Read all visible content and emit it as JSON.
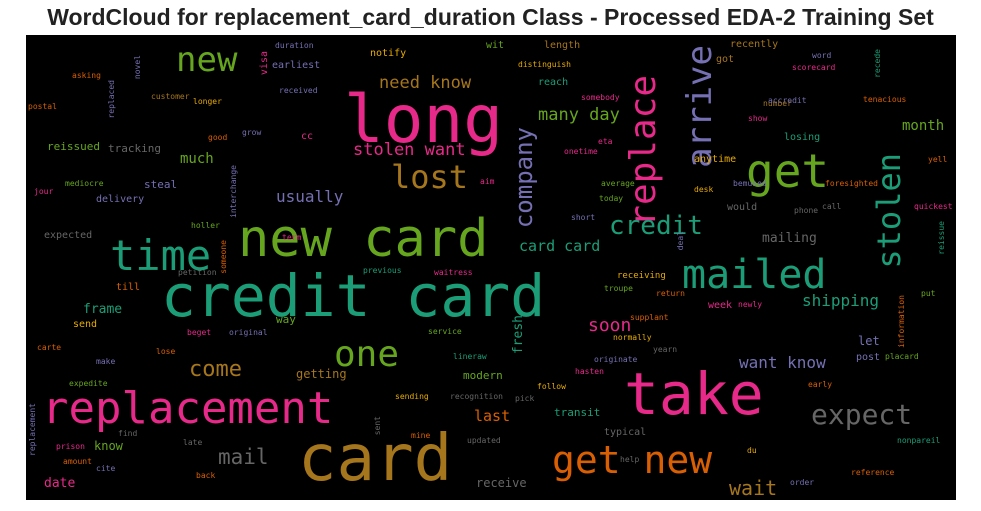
{
  "chart_data": {
    "type": "wordcloud",
    "title": "WordCloud for replacement_card_duration Class - Processed EDA-2 Training Set",
    "background": "#000000",
    "palette": [
      "#1b9e77",
      "#d95f02",
      "#7570b3",
      "#e7298a",
      "#66a61e",
      "#e6ab02",
      "#a6761d",
      "#666666"
    ],
    "words": [
      {
        "text": "long",
        "rank": 1,
        "color": "#e7298a"
      },
      {
        "text": "credit card",
        "rank": 1,
        "color": "#1b9e77"
      },
      {
        "text": "card",
        "rank": 1,
        "color": "#a6761d"
      },
      {
        "text": "take",
        "rank": 1,
        "color": "#e7298a"
      },
      {
        "text": "new card",
        "rank": 2,
        "color": "#66a61e"
      },
      {
        "text": "replacement",
        "rank": 2,
        "color": "#e7298a"
      },
      {
        "text": "time",
        "rank": 3,
        "color": "#1b9e77"
      },
      {
        "text": "mailed",
        "rank": 3,
        "color": "#1b9e77"
      },
      {
        "text": "get",
        "rank": 3,
        "color": "#66a61e"
      },
      {
        "text": "get new",
        "rank": 3,
        "color": "#d95f02"
      },
      {
        "text": "replace",
        "rank": 3,
        "color": "#e7298a"
      },
      {
        "text": "arrive",
        "rank": 3,
        "color": "#7570b3"
      },
      {
        "text": "new",
        "rank": 4,
        "color": "#66a61e"
      },
      {
        "text": "one",
        "rank": 4,
        "color": "#66a61e"
      },
      {
        "text": "lost",
        "rank": 4,
        "color": "#a6761d"
      },
      {
        "text": "stolen",
        "rank": 4,
        "color": "#1b9e77"
      },
      {
        "text": "expect",
        "rank": 4,
        "color": "#666666"
      },
      {
        "text": "credit",
        "rank": 5,
        "color": "#1b9e77"
      },
      {
        "text": "company",
        "rank": 5,
        "color": "#7570b3"
      },
      {
        "text": "come",
        "rank": 5,
        "color": "#a6761d"
      },
      {
        "text": "mail",
        "rank": 5,
        "color": "#666666"
      },
      {
        "text": "wait",
        "rank": 5,
        "color": "#a6761d"
      },
      {
        "text": "soon",
        "rank": 5,
        "color": "#e7298a"
      },
      {
        "text": "need know",
        "rank": 6,
        "color": "#a6761d"
      },
      {
        "text": "stolen want",
        "rank": 6,
        "color": "#e7298a"
      },
      {
        "text": "many day",
        "rank": 6,
        "color": "#66a61e"
      },
      {
        "text": "usually",
        "rank": 6,
        "color": "#7570b3"
      },
      {
        "text": "card card",
        "rank": 6,
        "color": "#1b9e77"
      },
      {
        "text": "want know",
        "rank": 6,
        "color": "#7570b3"
      },
      {
        "text": "shipping",
        "rank": 6,
        "color": "#1b9e77"
      },
      {
        "text": "last",
        "rank": 6,
        "color": "#d95f02"
      },
      {
        "text": "month",
        "rank": 6,
        "color": "#66a61e"
      },
      {
        "text": "much",
        "rank": 7,
        "color": "#66a61e"
      },
      {
        "text": "mailing",
        "rank": 7,
        "color": "#666666"
      },
      {
        "text": "frame",
        "rank": 7,
        "color": "#1b9e77"
      },
      {
        "text": "fresh",
        "rank": 7,
        "color": "#1b9e77"
      },
      {
        "text": "date",
        "rank": 7,
        "color": "#e7298a"
      },
      {
        "text": "receive",
        "rank": 7,
        "color": "#666666"
      },
      {
        "text": "getting",
        "rank": 7,
        "color": "#a6761d"
      },
      {
        "text": "know",
        "rank": 7,
        "color": "#66a61e"
      },
      {
        "text": "let",
        "rank": 7,
        "color": "#7570b3"
      },
      {
        "text": "modern",
        "rank": 8,
        "color": "#66a61e"
      },
      {
        "text": "transit",
        "rank": 8,
        "color": "#1b9e77"
      },
      {
        "text": "typical",
        "rank": 8,
        "color": "#666666"
      },
      {
        "text": "way",
        "rank": 8,
        "color": "#66a61e"
      },
      {
        "text": "reissued",
        "rank": 8,
        "color": "#66a61e"
      },
      {
        "text": "tracking",
        "rank": 8,
        "color": "#666666"
      },
      {
        "text": "steal",
        "rank": 8,
        "color": "#7570b3"
      },
      {
        "text": "delivery",
        "rank": 8,
        "color": "#7570b3"
      },
      {
        "text": "expected",
        "rank": 8,
        "color": "#666666"
      },
      {
        "text": "till",
        "rank": 8,
        "color": "#d95f02"
      },
      {
        "text": "send",
        "rank": 8,
        "color": "#e6ab02"
      },
      {
        "text": "length",
        "rank": 8,
        "color": "#a6761d"
      },
      {
        "text": "notify",
        "rank": 8,
        "color": "#e6ab02"
      },
      {
        "text": "wit",
        "rank": 8,
        "color": "#66a61e"
      },
      {
        "text": "reach",
        "rank": 8,
        "color": "#1b9e77"
      },
      {
        "text": "recently",
        "rank": 8,
        "color": "#a6761d"
      },
      {
        "text": "anytime",
        "rank": 8,
        "color": "#e6ab02"
      },
      {
        "text": "would",
        "rank": 8,
        "color": "#666666"
      },
      {
        "text": "losing",
        "rank": 8,
        "color": "#1b9e77"
      },
      {
        "text": "week",
        "rank": 8,
        "color": "#e7298a"
      },
      {
        "text": "post",
        "rank": 8,
        "color": "#7570b3"
      },
      {
        "text": "visa",
        "rank": 8,
        "color": "#e7298a"
      },
      {
        "text": "earliest",
        "rank": 8,
        "color": "#7570b3"
      },
      {
        "text": "got",
        "rank": 8,
        "color": "#a6761d"
      },
      {
        "text": "cc",
        "rank": 8,
        "color": "#e7298a"
      },
      {
        "text": "duration",
        "rank": 9,
        "color": "#7570b3"
      },
      {
        "text": "asking",
        "rank": 9,
        "color": "#d95f02"
      },
      {
        "text": "postal",
        "rank": 9,
        "color": "#d95f02"
      },
      {
        "text": "novel",
        "rank": 9,
        "color": "#7570b3"
      },
      {
        "text": "replaced",
        "rank": 9,
        "color": "#7570b3"
      },
      {
        "text": "customer",
        "rank": 9,
        "color": "#a6761d"
      },
      {
        "text": "longer",
        "rank": 9,
        "color": "#e6ab02"
      },
      {
        "text": "received",
        "rank": 9,
        "color": "#7570b3"
      },
      {
        "text": "distinguish",
        "rank": 9,
        "color": "#e6ab02"
      },
      {
        "text": "somebody",
        "rank": 9,
        "color": "#e7298a"
      },
      {
        "text": "good",
        "rank": 9,
        "color": "#d95f02"
      },
      {
        "text": "grow",
        "rank": 9,
        "color": "#7570b3"
      },
      {
        "text": "eta",
        "rank": 9,
        "color": "#e7298a"
      },
      {
        "text": "onetime",
        "rank": 9,
        "color": "#e7298a"
      },
      {
        "text": "word",
        "rank": 9,
        "color": "#7570b3"
      },
      {
        "text": "scorecard",
        "rank": 9,
        "color": "#e7298a"
      },
      {
        "text": "recede",
        "rank": 9,
        "color": "#1b9e77"
      },
      {
        "text": "number",
        "rank": 9,
        "color": "#a6761d"
      },
      {
        "text": "accredit",
        "rank": 9,
        "color": "#7570b3"
      },
      {
        "text": "tenacious",
        "rank": 9,
        "color": "#d95f02"
      },
      {
        "text": "show",
        "rank": 9,
        "color": "#e7298a"
      },
      {
        "text": "mediocre",
        "rank": 9,
        "color": "#66a61e"
      },
      {
        "text": "jour",
        "rank": 9,
        "color": "#e7298a"
      },
      {
        "text": "interchange",
        "rank": 9,
        "color": "#7570b3"
      },
      {
        "text": "aim",
        "rank": 9,
        "color": "#e7298a"
      },
      {
        "text": "average",
        "rank": 9,
        "color": "#66a61e"
      },
      {
        "text": "desk",
        "rank": 9,
        "color": "#e6ab02"
      },
      {
        "text": "today",
        "rank": 9,
        "color": "#66a61e"
      },
      {
        "text": "bemused",
        "rank": 9,
        "color": "#7570b3"
      },
      {
        "text": "foresighted",
        "rank": 9,
        "color": "#d95f02"
      },
      {
        "text": "yell",
        "rank": 9,
        "color": "#d95f02"
      },
      {
        "text": "quickest",
        "rank": 9,
        "color": "#e7298a"
      },
      {
        "text": "call",
        "rank": 9,
        "color": "#666666"
      },
      {
        "text": "phone",
        "rank": 9,
        "color": "#666666"
      },
      {
        "text": "short",
        "rank": 9,
        "color": "#7570b3"
      },
      {
        "text": "holler",
        "rank": 9,
        "color": "#66a61e"
      },
      {
        "text": "term",
        "rank": 9,
        "color": "#e7298a"
      },
      {
        "text": "someone",
        "rank": 9,
        "color": "#d95f02"
      },
      {
        "text": "petition",
        "rank": 9,
        "color": "#666666"
      },
      {
        "text": "previous",
        "rank": 9,
        "color": "#1b9e77"
      },
      {
        "text": "waitress",
        "rank": 9,
        "color": "#e7298a"
      },
      {
        "text": "deal",
        "rank": 9,
        "color": "#7570b3"
      },
      {
        "text": "reissue",
        "rank": 9,
        "color": "#1b9e77"
      },
      {
        "text": "receiving",
        "rank": 9,
        "color": "#e6ab02"
      },
      {
        "text": "troupe",
        "rank": 9,
        "color": "#66a61e"
      },
      {
        "text": "return",
        "rank": 9,
        "color": "#d95f02"
      },
      {
        "text": "newly",
        "rank": 9,
        "color": "#e7298a"
      },
      {
        "text": "put",
        "rank": 9,
        "color": "#66a61e"
      },
      {
        "text": "information",
        "rank": 9,
        "color": "#d95f02"
      },
      {
        "text": "supplant",
        "rank": 9,
        "color": "#d95f02"
      },
      {
        "text": "beget",
        "rank": 9,
        "color": "#e7298a"
      },
      {
        "text": "original",
        "rank": 9,
        "color": "#7570b3"
      },
      {
        "text": "service",
        "rank": 9,
        "color": "#66a61e"
      },
      {
        "text": "normally",
        "rank": 9,
        "color": "#e6ab02"
      },
      {
        "text": "carte",
        "rank": 9,
        "color": "#d95f02"
      },
      {
        "text": "make",
        "rank": 9,
        "color": "#7570b3"
      },
      {
        "text": "lose",
        "rank": 9,
        "color": "#d95f02"
      },
      {
        "text": "lineraw",
        "rank": 9,
        "color": "#1b9e77"
      },
      {
        "text": "originate",
        "rank": 9,
        "color": "#7570b3"
      },
      {
        "text": "yearn",
        "rank": 9,
        "color": "#666666"
      },
      {
        "text": "placard",
        "rank": 9,
        "color": "#66a61e"
      },
      {
        "text": "hasten",
        "rank": 9,
        "color": "#e7298a"
      },
      {
        "text": "early",
        "rank": 9,
        "color": "#d95f02"
      },
      {
        "text": "expedite",
        "rank": 9,
        "color": "#66a61e"
      },
      {
        "text": "follow",
        "rank": 9,
        "color": "#e6ab02"
      },
      {
        "text": "sending",
        "rank": 9,
        "color": "#e6ab02"
      },
      {
        "text": "recognition",
        "rank": 9,
        "color": "#666666"
      },
      {
        "text": "pick",
        "rank": 9,
        "color": "#666666"
      },
      {
        "text": "replacement",
        "rank": 9,
        "color": "#7570b3"
      },
      {
        "text": "prison",
        "rank": 9,
        "color": "#e7298a"
      },
      {
        "text": "find",
        "rank": 9,
        "color": "#666666"
      },
      {
        "text": "sent",
        "rank": 9,
        "color": "#666666"
      },
      {
        "text": "mine",
        "rank": 9,
        "color": "#d95f02"
      },
      {
        "text": "nonpareil",
        "rank": 9,
        "color": "#1b9e77"
      },
      {
        "text": "amount",
        "rank": 9,
        "color": "#d95f02"
      },
      {
        "text": "cite",
        "rank": 9,
        "color": "#7570b3"
      },
      {
        "text": "late",
        "rank": 9,
        "color": "#666666"
      },
      {
        "text": "updated",
        "rank": 9,
        "color": "#666666"
      },
      {
        "text": "help",
        "rank": 9,
        "color": "#666666"
      },
      {
        "text": "du",
        "rank": 9,
        "color": "#e6ab02"
      },
      {
        "text": "back",
        "rank": 9,
        "color": "#d95f02"
      },
      {
        "text": "order",
        "rank": 9,
        "color": "#7570b3"
      },
      {
        "text": "reference",
        "rank": 9,
        "color": "#d95f02"
      }
    ]
  }
}
